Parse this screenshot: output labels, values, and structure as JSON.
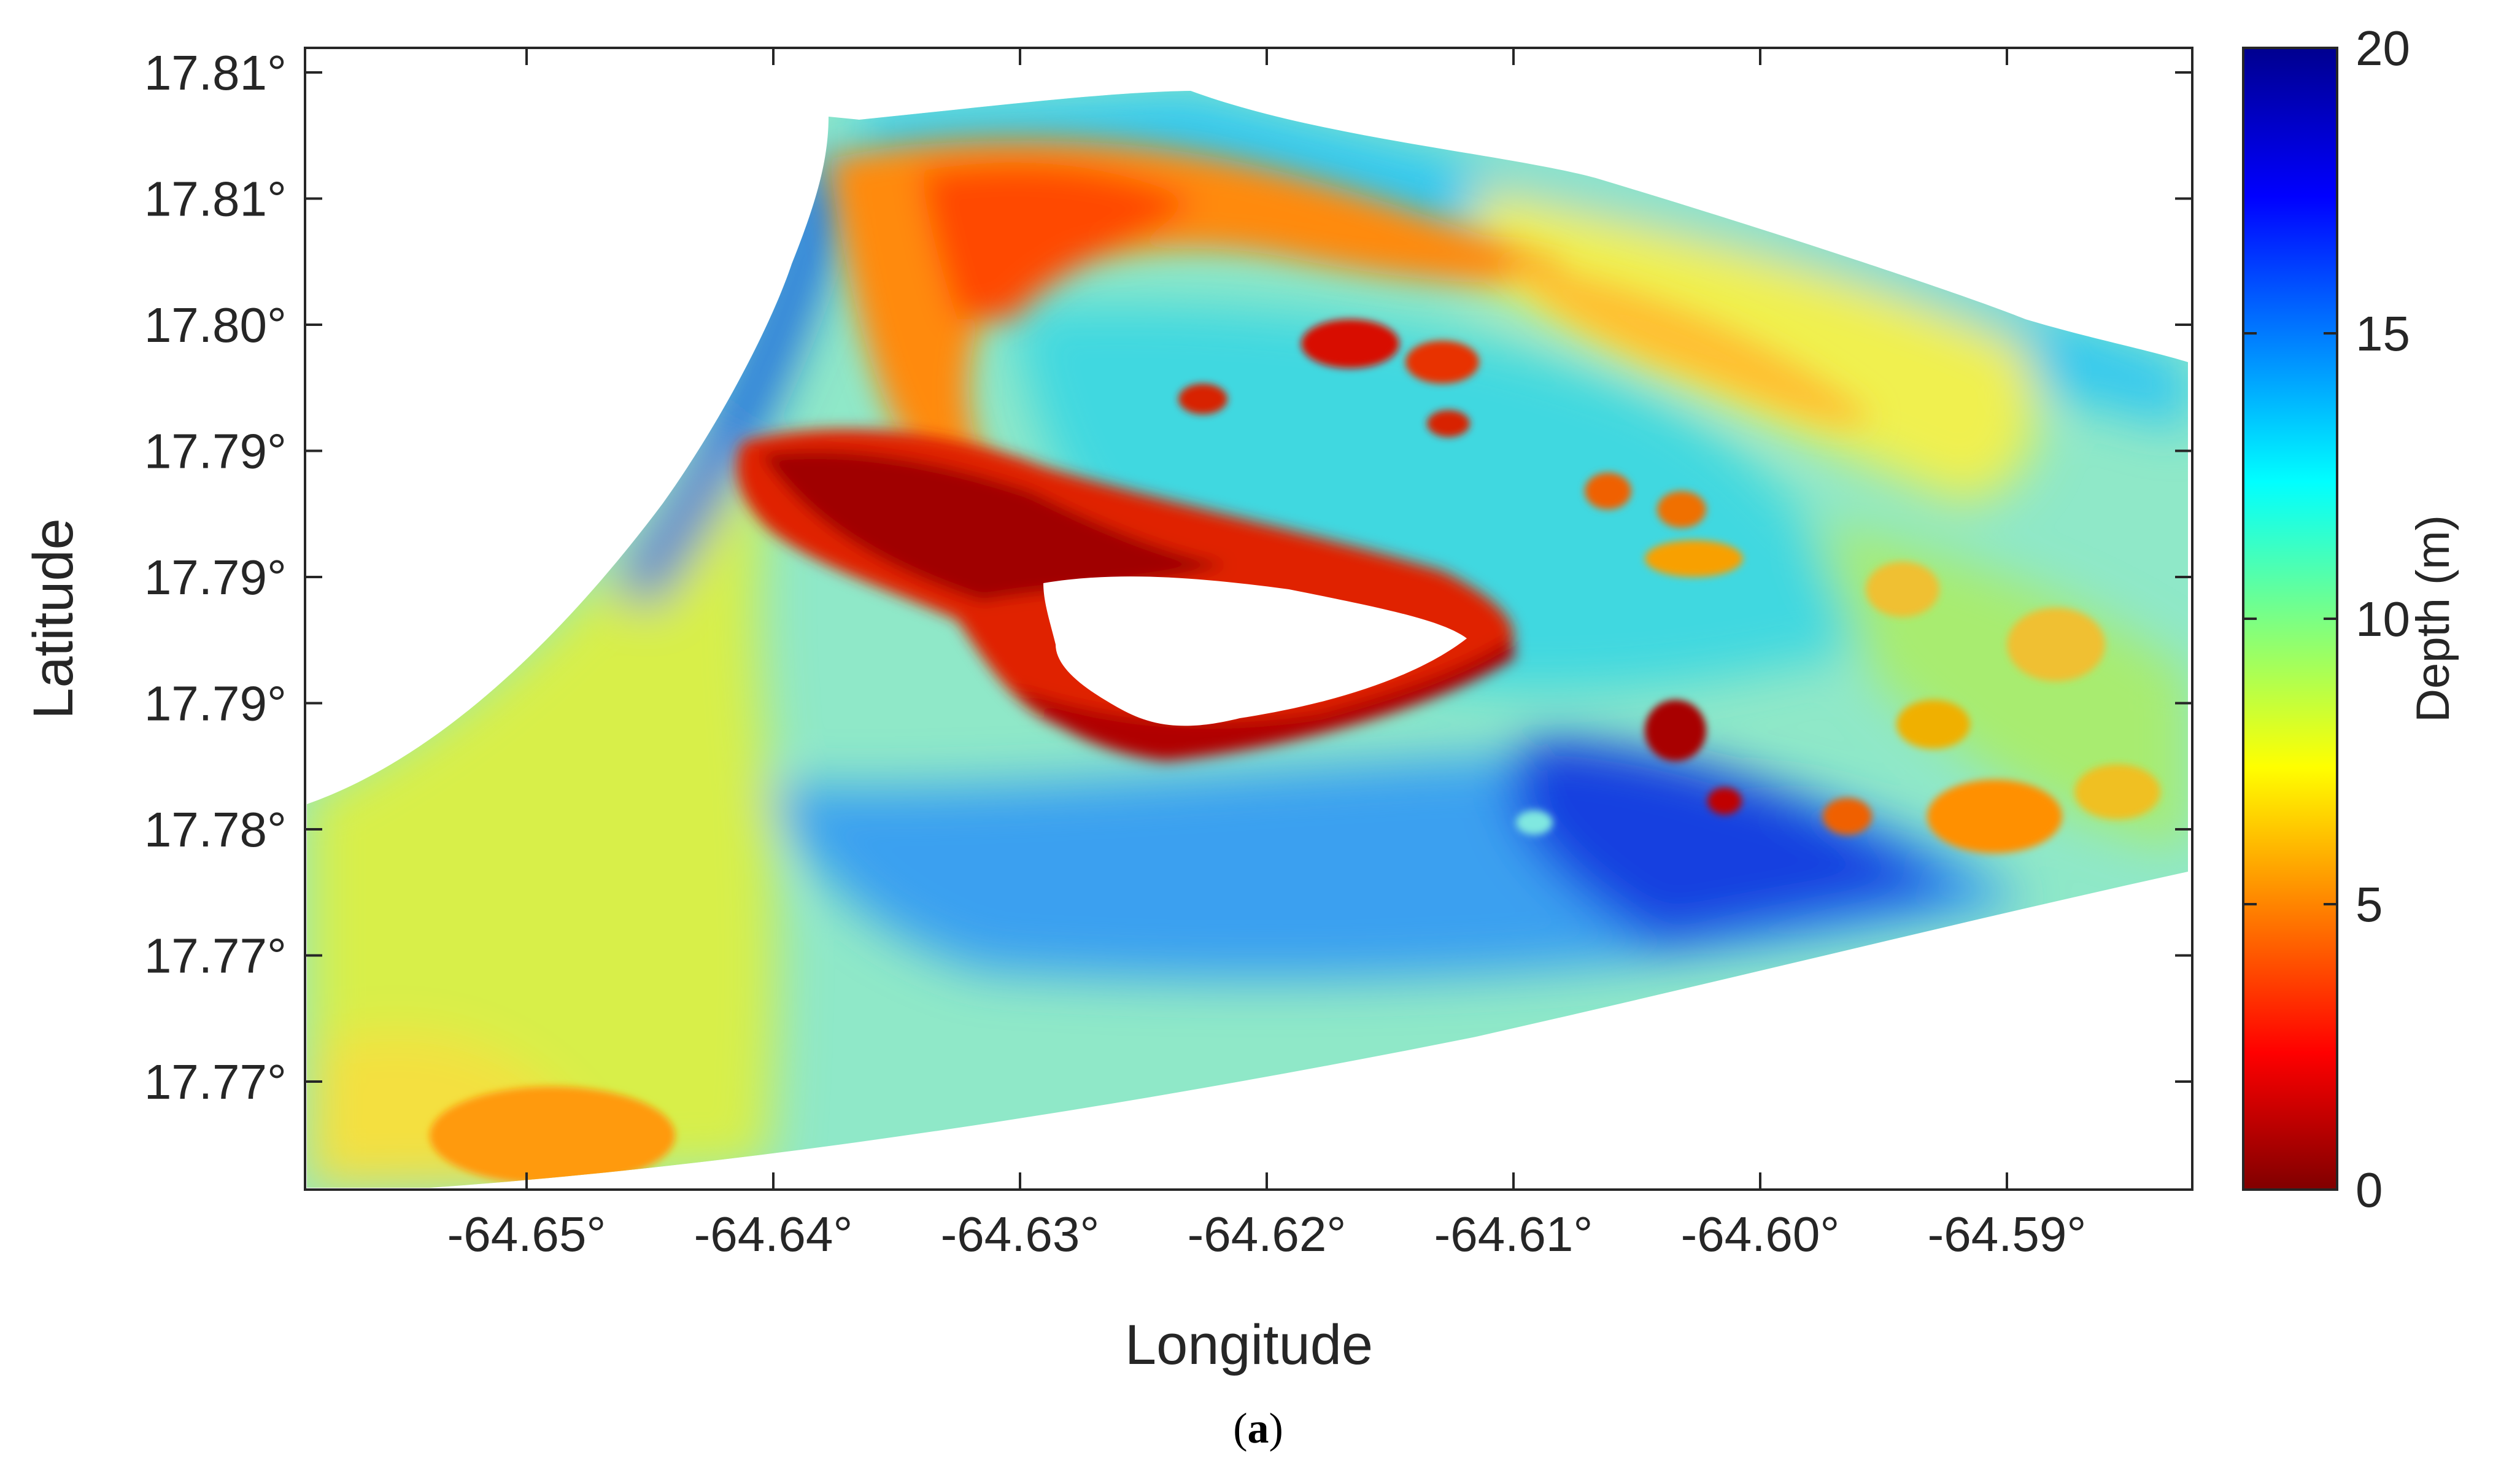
{
  "figure": {
    "caption_open": "(",
    "caption_letter": "a",
    "caption_close": ")"
  },
  "map": {
    "xlabel": "Longitude",
    "ylabel": "Latitude",
    "x_ticks": [
      "-64.65°",
      "-64.64°",
      "-64.63°",
      "-64.62°",
      "-64.61°",
      "-64.60°",
      "-64.59°"
    ],
    "y_ticks": [
      "17.81°",
      "17.81°",
      "17.80°",
      "17.79°",
      "17.79°",
      "17.79°",
      "17.78°",
      "17.77°",
      "17.77°"
    ],
    "colormap": "jet (reversed: shallow red, deep blue)",
    "colors": {
      "shallow": "#800000",
      "mid_shallow": "#ff3000",
      "mid": "#ffd000",
      "mid_deep": "#30e0e0",
      "deep": "#0000a0",
      "land": "#ffffff"
    }
  },
  "colorbar": {
    "label": "Depth (m)",
    "ticks": [
      "0",
      "5",
      "10",
      "15",
      "20"
    ],
    "range": [
      0,
      20
    ]
  }
}
